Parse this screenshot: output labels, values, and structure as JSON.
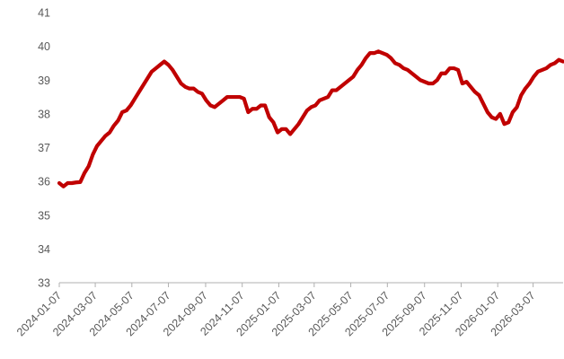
{
  "chart_data": {
    "type": "line",
    "title": "",
    "xlabel": "",
    "ylabel": "",
    "ylim": [
      33,
      41
    ],
    "yticks": [
      33,
      34,
      35,
      36,
      37,
      38,
      39,
      40,
      41
    ],
    "grid": false,
    "legend": "none",
    "x_range": [
      "2024-01-07",
      "2026-04-26"
    ],
    "xtick_labels": [
      "2024-01-07",
      "2024-03-07",
      "2024-05-07",
      "2024-07-07",
      "2024-09-07",
      "2024-11-07",
      "2025-01-07",
      "2025-03-07",
      "2025-05-07",
      "2025-07-07",
      "2025-09-07",
      "2025-11-07",
      "2026-01-07",
      "2026-03-07"
    ],
    "series": [
      {
        "color": "#c00000",
        "points": [
          [
            "2024-01-07",
            35.95
          ],
          [
            "2024-01-14",
            35.85
          ],
          [
            "2024-01-21",
            35.95
          ],
          [
            "2024-01-28",
            35.95
          ],
          [
            "2024-02-04",
            35.97
          ],
          [
            "2024-02-11",
            35.98
          ],
          [
            "2024-02-18",
            36.25
          ],
          [
            "2024-02-25",
            36.45
          ],
          [
            "2024-03-03",
            36.8
          ],
          [
            "2024-03-10",
            37.05
          ],
          [
            "2024-03-17",
            37.2
          ],
          [
            "2024-03-24",
            37.35
          ],
          [
            "2024-03-31",
            37.45
          ],
          [
            "2024-04-07",
            37.65
          ],
          [
            "2024-04-14",
            37.8
          ],
          [
            "2024-04-21",
            38.05
          ],
          [
            "2024-04-28",
            38.1
          ],
          [
            "2024-05-05",
            38.25
          ],
          [
            "2024-05-12",
            38.45
          ],
          [
            "2024-05-19",
            38.65
          ],
          [
            "2024-05-26",
            38.85
          ],
          [
            "2024-06-02",
            39.05
          ],
          [
            "2024-06-09",
            39.25
          ],
          [
            "2024-06-16",
            39.35
          ],
          [
            "2024-06-23",
            39.45
          ],
          [
            "2024-06-30",
            39.55
          ],
          [
            "2024-07-07",
            39.45
          ],
          [
            "2024-07-14",
            39.3
          ],
          [
            "2024-07-21",
            39.1
          ],
          [
            "2024-07-28",
            38.9
          ],
          [
            "2024-08-04",
            38.8
          ],
          [
            "2024-08-11",
            38.75
          ],
          [
            "2024-08-18",
            38.75
          ],
          [
            "2024-08-25",
            38.65
          ],
          [
            "2024-09-01",
            38.6
          ],
          [
            "2024-09-08",
            38.4
          ],
          [
            "2024-09-15",
            38.25
          ],
          [
            "2024-09-22",
            38.2
          ],
          [
            "2024-09-29",
            38.3
          ],
          [
            "2024-10-06",
            38.4
          ],
          [
            "2024-10-13",
            38.5
          ],
          [
            "2024-10-20",
            38.5
          ],
          [
            "2024-10-27",
            38.5
          ],
          [
            "2024-11-03",
            38.5
          ],
          [
            "2024-11-10",
            38.45
          ],
          [
            "2024-11-17",
            38.05
          ],
          [
            "2024-11-24",
            38.15
          ],
          [
            "2024-12-01",
            38.15
          ],
          [
            "2024-12-08",
            38.25
          ],
          [
            "2024-12-15",
            38.25
          ],
          [
            "2024-12-22",
            37.9
          ],
          [
            "2024-12-29",
            37.75
          ],
          [
            "2025-01-05",
            37.45
          ],
          [
            "2025-01-12",
            37.55
          ],
          [
            "2025-01-19",
            37.55
          ],
          [
            "2025-01-26",
            37.4
          ],
          [
            "2025-02-02",
            37.55
          ],
          [
            "2025-02-09",
            37.7
          ],
          [
            "2025-02-16",
            37.9
          ],
          [
            "2025-02-23",
            38.1
          ],
          [
            "2025-03-02",
            38.2
          ],
          [
            "2025-03-09",
            38.25
          ],
          [
            "2025-03-16",
            38.4
          ],
          [
            "2025-03-23",
            38.45
          ],
          [
            "2025-03-30",
            38.5
          ],
          [
            "2025-04-06",
            38.7
          ],
          [
            "2025-04-13",
            38.7
          ],
          [
            "2025-04-20",
            38.8
          ],
          [
            "2025-04-27",
            38.9
          ],
          [
            "2025-05-04",
            39.0
          ],
          [
            "2025-05-11",
            39.1
          ],
          [
            "2025-05-18",
            39.3
          ],
          [
            "2025-05-25",
            39.45
          ],
          [
            "2025-06-01",
            39.65
          ],
          [
            "2025-06-08",
            39.8
          ],
          [
            "2025-06-15",
            39.8
          ],
          [
            "2025-06-22",
            39.85
          ],
          [
            "2025-06-29",
            39.8
          ],
          [
            "2025-07-06",
            39.75
          ],
          [
            "2025-07-13",
            39.65
          ],
          [
            "2025-07-20",
            39.5
          ],
          [
            "2025-07-27",
            39.45
          ],
          [
            "2025-08-03",
            39.35
          ],
          [
            "2025-08-10",
            39.3
          ],
          [
            "2025-08-17",
            39.2
          ],
          [
            "2025-08-24",
            39.1
          ],
          [
            "2025-08-31",
            39.0
          ],
          [
            "2025-09-07",
            38.95
          ],
          [
            "2025-09-14",
            38.9
          ],
          [
            "2025-09-21",
            38.9
          ],
          [
            "2025-09-28",
            39.0
          ],
          [
            "2025-10-05",
            39.2
          ],
          [
            "2025-10-12",
            39.2
          ],
          [
            "2025-10-19",
            39.35
          ],
          [
            "2025-10-26",
            39.35
          ],
          [
            "2025-11-02",
            39.3
          ],
          [
            "2025-11-09",
            38.9
          ],
          [
            "2025-11-16",
            38.95
          ],
          [
            "2025-11-23",
            38.8
          ],
          [
            "2025-11-30",
            38.65
          ],
          [
            "2025-12-07",
            38.55
          ],
          [
            "2025-12-14",
            38.3
          ],
          [
            "2025-12-21",
            38.05
          ],
          [
            "2025-12-28",
            37.9
          ],
          [
            "2026-01-04",
            37.85
          ],
          [
            "2026-01-11",
            38.0
          ],
          [
            "2026-01-18",
            37.7
          ],
          [
            "2026-01-25",
            37.75
          ],
          [
            "2026-02-01",
            38.05
          ],
          [
            "2026-02-08",
            38.2
          ],
          [
            "2026-02-15",
            38.55
          ],
          [
            "2026-02-22",
            38.75
          ],
          [
            "2026-03-01",
            38.9
          ],
          [
            "2026-03-08",
            39.1
          ],
          [
            "2026-03-15",
            39.25
          ],
          [
            "2026-03-22",
            39.3
          ],
          [
            "2026-03-29",
            39.35
          ],
          [
            "2026-04-05",
            39.45
          ],
          [
            "2026-04-12",
            39.5
          ],
          [
            "2026-04-19",
            39.6
          ],
          [
            "2026-04-26",
            39.55
          ]
        ]
      }
    ]
  }
}
